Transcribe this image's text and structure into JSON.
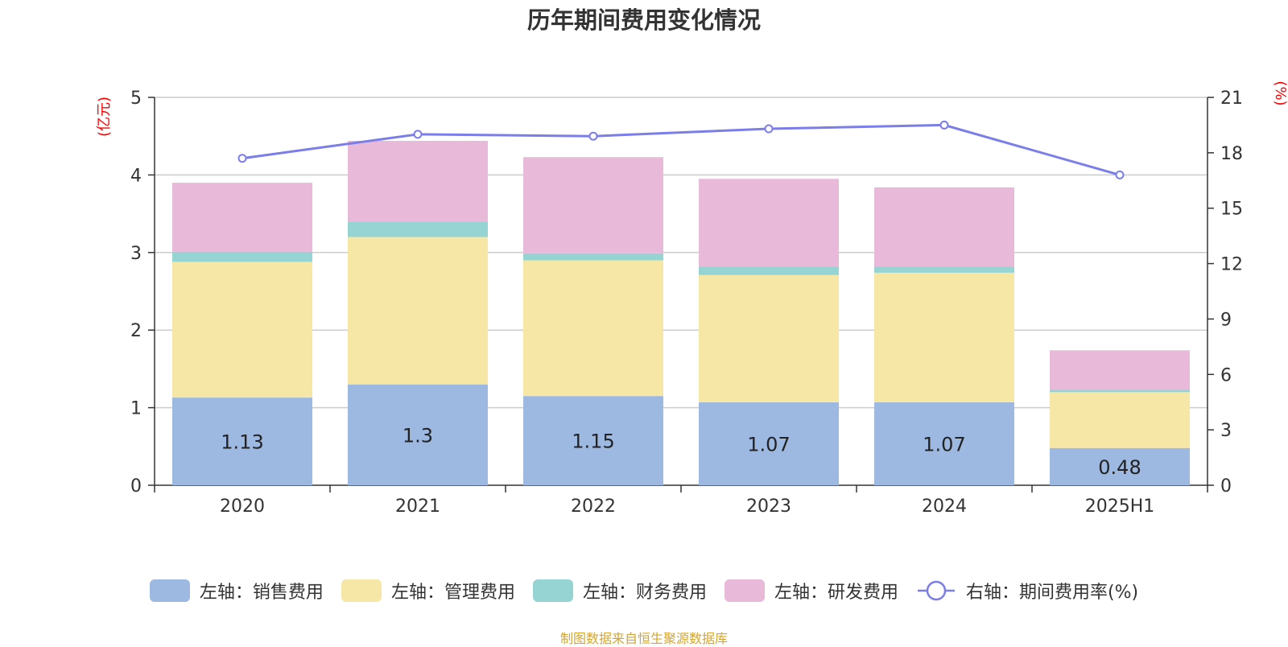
{
  "chart_data": {
    "type": "bar",
    "title": "历年期间费用变化情况",
    "categories": [
      "2020",
      "2021",
      "2022",
      "2023",
      "2024",
      "2025H1"
    ],
    "left_axis": {
      "label": "(亿元)",
      "ylim": [
        0,
        5
      ],
      "ticks": [
        "0",
        "1",
        "2",
        "3",
        "4",
        "5"
      ]
    },
    "right_axis": {
      "label": "(%)",
      "ylim": [
        0,
        21
      ],
      "ticks": [
        "0",
        "3",
        "6",
        "9",
        "12",
        "15",
        "18",
        "21"
      ]
    },
    "series": [
      {
        "name": "左轴：销售费用",
        "kind": "stacked-bar",
        "axis": "left",
        "color": "#9db8e1",
        "values": [
          1.13,
          1.3,
          1.15,
          1.07,
          1.07,
          0.48
        ],
        "show_labels": true
      },
      {
        "name": "左轴：管理费用",
        "kind": "stacked-bar",
        "axis": "left",
        "color": "#f7e7a6",
        "values": [
          1.75,
          1.9,
          1.75,
          1.64,
          1.67,
          0.72
        ]
      },
      {
        "name": "左轴：财务费用",
        "kind": "stacked-bar",
        "axis": "left",
        "color": "#96d4d4",
        "values": [
          0.13,
          0.2,
          0.09,
          0.11,
          0.08,
          0.03
        ]
      },
      {
        "name": "左轴：研发费用",
        "kind": "stacked-bar",
        "axis": "left",
        "color": "#e8b9d9",
        "values": [
          0.89,
          1.04,
          1.24,
          1.13,
          1.02,
          0.51
        ]
      },
      {
        "name": "右轴：期间费用率(%)",
        "kind": "line",
        "axis": "right",
        "color": "#7b7ee8",
        "values": [
          17.7,
          19.0,
          18.9,
          19.3,
          19.5,
          16.8
        ]
      }
    ],
    "grid": true,
    "legend_position": "bottom"
  },
  "source_text": "制图数据来自恒生聚源数据库",
  "source_color": "#d4a531"
}
